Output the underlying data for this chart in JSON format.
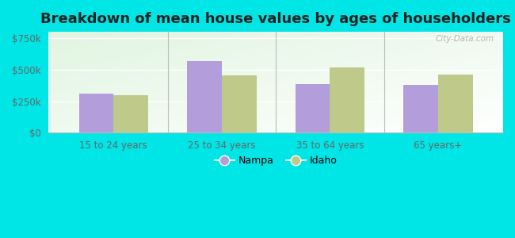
{
  "title": "Breakdown of mean house values by ages of householders",
  "categories": [
    "15 to 24 years",
    "25 to 34 years",
    "35 to 64 years",
    "65 years+"
  ],
  "nampa_values": [
    310000,
    565000,
    385000,
    380000
  ],
  "idaho_values": [
    295000,
    455000,
    515000,
    460000
  ],
  "nampa_color": "#b39ddb",
  "idaho_color": "#bec98a",
  "background_color": "#00e5e5",
  "ylim": [
    0,
    800000
  ],
  "yticks": [
    0,
    250000,
    500000,
    750000
  ],
  "ytick_labels": [
    "$0",
    "$250k",
    "$500k",
    "$750k"
  ],
  "legend_nampa": "Nampa",
  "legend_idaho": "Idaho",
  "watermark": "City-Data.com",
  "bar_width": 0.32,
  "title_fontsize": 13,
  "tick_fontsize": 8.5,
  "legend_fontsize": 9
}
